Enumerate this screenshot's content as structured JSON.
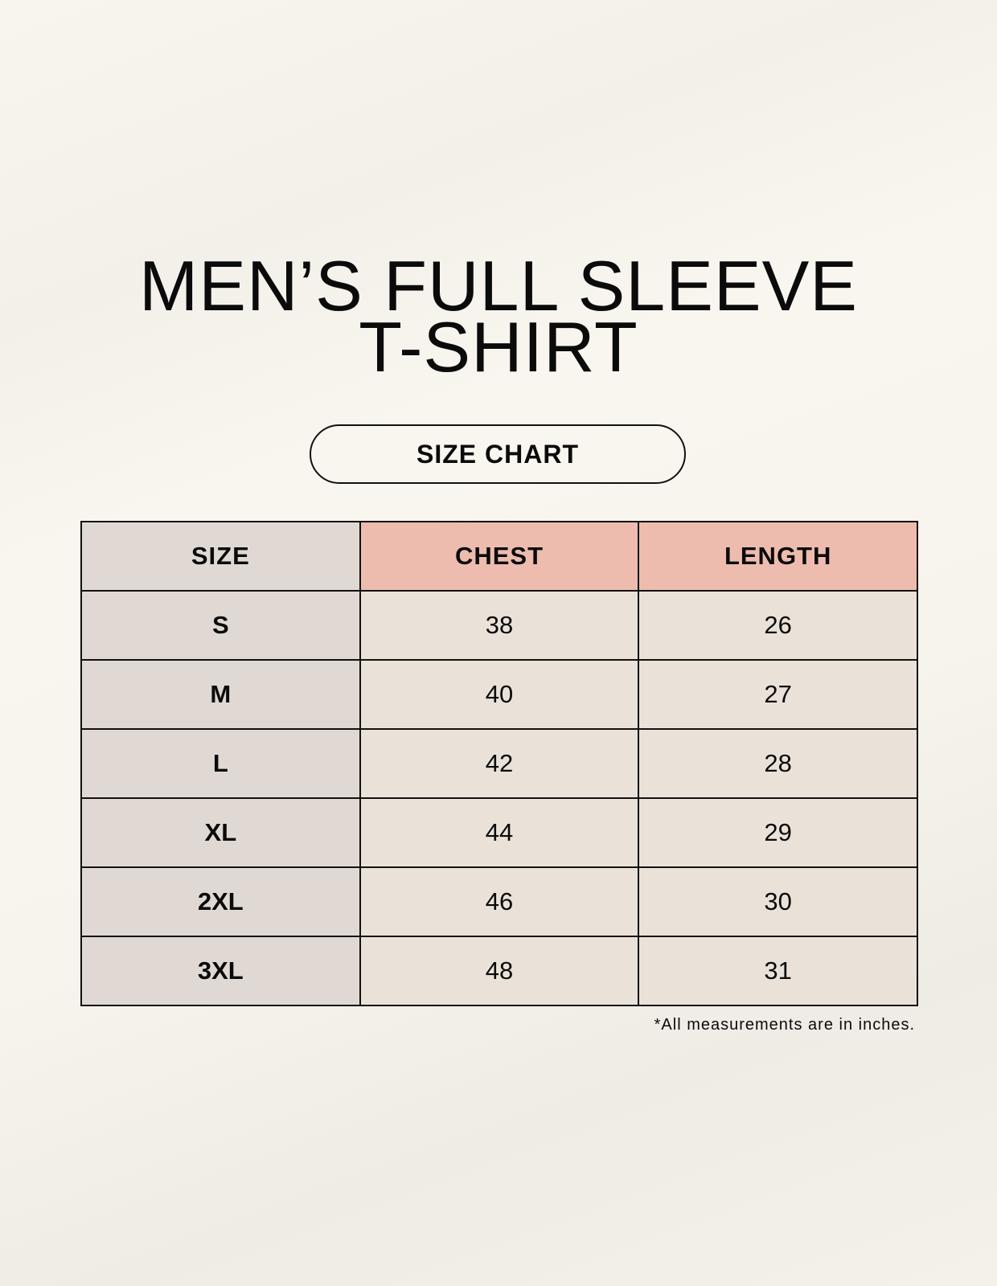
{
  "title": {
    "line1": "MEN’S FULL SLEEVE",
    "line2": "T-SHIRT"
  },
  "badge": "SIZE CHART",
  "colors": {
    "size_column": "#e0d9d3",
    "header_accent": "#edbcae",
    "value_cells": "#eae2d8"
  },
  "table": {
    "headers": [
      "SIZE",
      "CHEST",
      "LENGTH"
    ],
    "rows": [
      [
        "S",
        "38",
        "26"
      ],
      [
        "M",
        "40",
        "27"
      ],
      [
        "L",
        "42",
        "28"
      ],
      [
        "XL",
        "44",
        "29"
      ],
      [
        "2XL",
        "46",
        "30"
      ],
      [
        "3XL",
        "48",
        "31"
      ]
    ]
  },
  "footnote": "*All measurements are in inches."
}
